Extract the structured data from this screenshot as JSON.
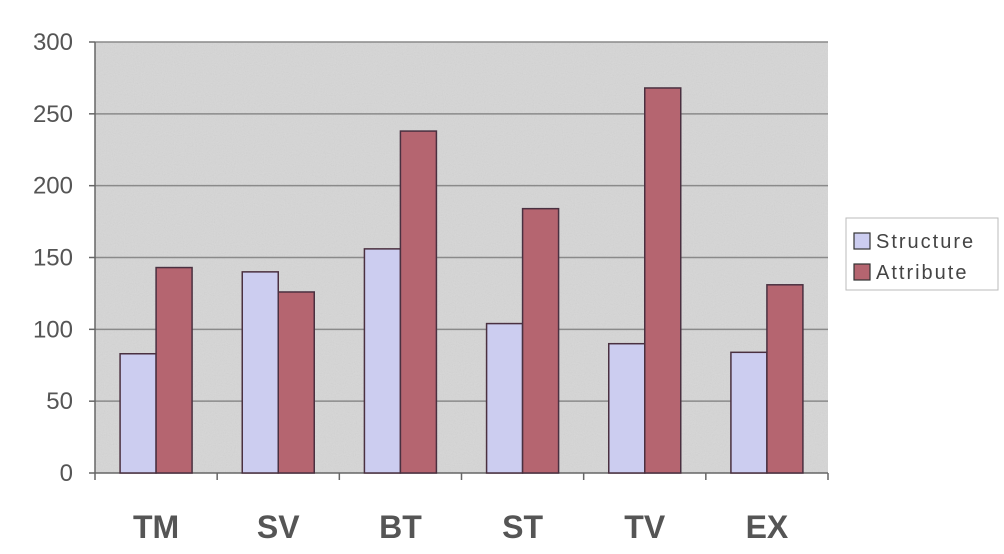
{
  "chart_data": {
    "type": "bar",
    "title": "",
    "xlabel": "",
    "ylabel": "",
    "categories": [
      "TM",
      "SV",
      "BT",
      "ST",
      "TV",
      "EX"
    ],
    "series": [
      {
        "name": "Structure",
        "values": [
          83,
          140,
          156,
          104,
          90,
          84
        ]
      },
      {
        "name": "Attribute",
        "values": [
          143,
          126,
          238,
          184,
          268,
          131
        ]
      }
    ],
    "ylim": [
      0,
      300
    ],
    "yticks": [
      0,
      50,
      100,
      150,
      200,
      250,
      300
    ],
    "ytick_labels": [
      "0",
      "50",
      "100",
      "150",
      "200",
      "250",
      "300"
    ],
    "grid": true,
    "legend": "right",
    "colors": {
      "Structure": "#cccdf0",
      "Attribute": "#b56570",
      "plot_background": "#d6d6d6",
      "gridline": "#8a8a8a",
      "axis": "#666666"
    }
  }
}
